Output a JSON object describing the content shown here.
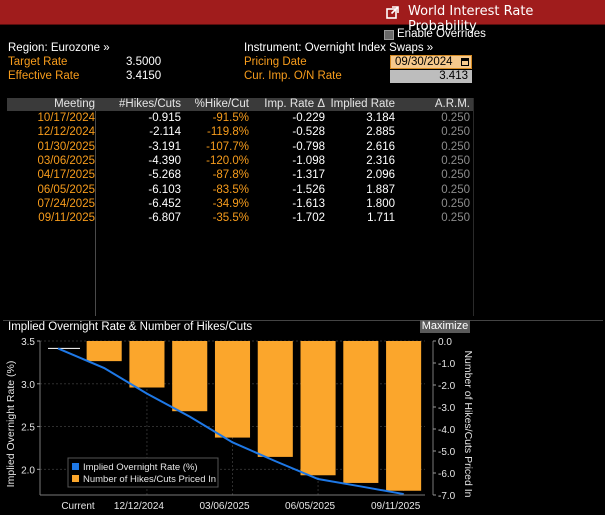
{
  "header": {
    "title": "World Interest Rate Probability"
  },
  "overrides": {
    "label": "Enable Overrides"
  },
  "region": {
    "label": "Region: Eurozone »"
  },
  "instrument": {
    "label": "Instrument: Overnight Index Swaps »"
  },
  "target_rate": {
    "label": "Target Rate",
    "value": "3.5000"
  },
  "effective_rate": {
    "label": "Effective Rate",
    "value": "3.4150"
  },
  "pricing_date": {
    "label": "Pricing Date",
    "value": "09/30/2024"
  },
  "cur_imp": {
    "label": "Cur. Imp. O/N Rate",
    "value": "3.413"
  },
  "table": {
    "headers": [
      "Meeting",
      "#Hikes/Cuts",
      "%Hike/Cut",
      "Imp. Rate Δ",
      "Implied Rate",
      "A.R.M."
    ],
    "rows": [
      [
        "10/17/2024",
        "-0.915",
        "-91.5%",
        "-0.229",
        "3.184",
        "0.250"
      ],
      [
        "12/12/2024",
        "-2.114",
        "-119.8%",
        "-0.528",
        "2.885",
        "0.250"
      ],
      [
        "01/30/2025",
        "-3.191",
        "-107.7%",
        "-0.798",
        "2.616",
        "0.250"
      ],
      [
        "03/06/2025",
        "-4.390",
        "-120.0%",
        "-1.098",
        "2.316",
        "0.250"
      ],
      [
        "04/17/2025",
        "-5.268",
        "-87.8%",
        "-1.317",
        "2.096",
        "0.250"
      ],
      [
        "06/05/2025",
        "-6.103",
        "-83.5%",
        "-1.526",
        "1.887",
        "0.250"
      ],
      [
        "07/24/2025",
        "-6.452",
        "-34.9%",
        "-1.613",
        "1.800",
        "0.250"
      ],
      [
        "09/11/2025",
        "-6.807",
        "-35.5%",
        "-1.702",
        "1.711",
        "0.250"
      ]
    ]
  },
  "chart_panel": {
    "title": "Implied Overnight Rate & Number of Hikes/Cuts",
    "maximize_label": "Maximize"
  },
  "chart_data": {
    "type": "bar",
    "categories": [
      "Current",
      "10/17/2024",
      "12/12/2024",
      "01/30/2025",
      "03/06/2025",
      "04/17/2025",
      "06/05/2025",
      "07/24/2025",
      "09/11/2025"
    ],
    "x_tick_labels": [
      "Current",
      "12/12/2024",
      "03/06/2025",
      "06/05/2025",
      "09/11/2025"
    ],
    "series": [
      {
        "name": "Implied Overnight Rate (%)",
        "type": "line",
        "axis": "left",
        "values": [
          3.413,
          3.184,
          2.885,
          2.616,
          2.316,
          2.096,
          1.887,
          1.8,
          1.711
        ]
      },
      {
        "name": "Number of Hikes/Cuts Priced In",
        "type": "bar",
        "axis": "right",
        "values": [
          null,
          -0.915,
          -2.114,
          -3.191,
          -4.39,
          -5.268,
          -6.103,
          -6.452,
          -6.807
        ]
      }
    ],
    "ylabel": "Implied Overnight Rate (%)",
    "ylabel_right": "Number of Hikes/Cuts Priced In",
    "ylim": [
      1.7,
      3.5
    ],
    "ylim_right": [
      -7.0,
      0.0
    ],
    "yticks": [
      "3.5",
      "3.0",
      "2.5",
      "2.0"
    ],
    "yticks_right": [
      "0.0",
      "-1.0",
      "-2.0",
      "-3.0",
      "-4.0",
      "-5.0",
      "-6.0",
      "-7.0"
    ],
    "legend_position": "bottom-left",
    "colors": {
      "line": "#1e78e6",
      "bar": "#fba62c"
    }
  },
  "theme": {
    "accent": "#a01c1c",
    "orange": "#f79c1c"
  }
}
